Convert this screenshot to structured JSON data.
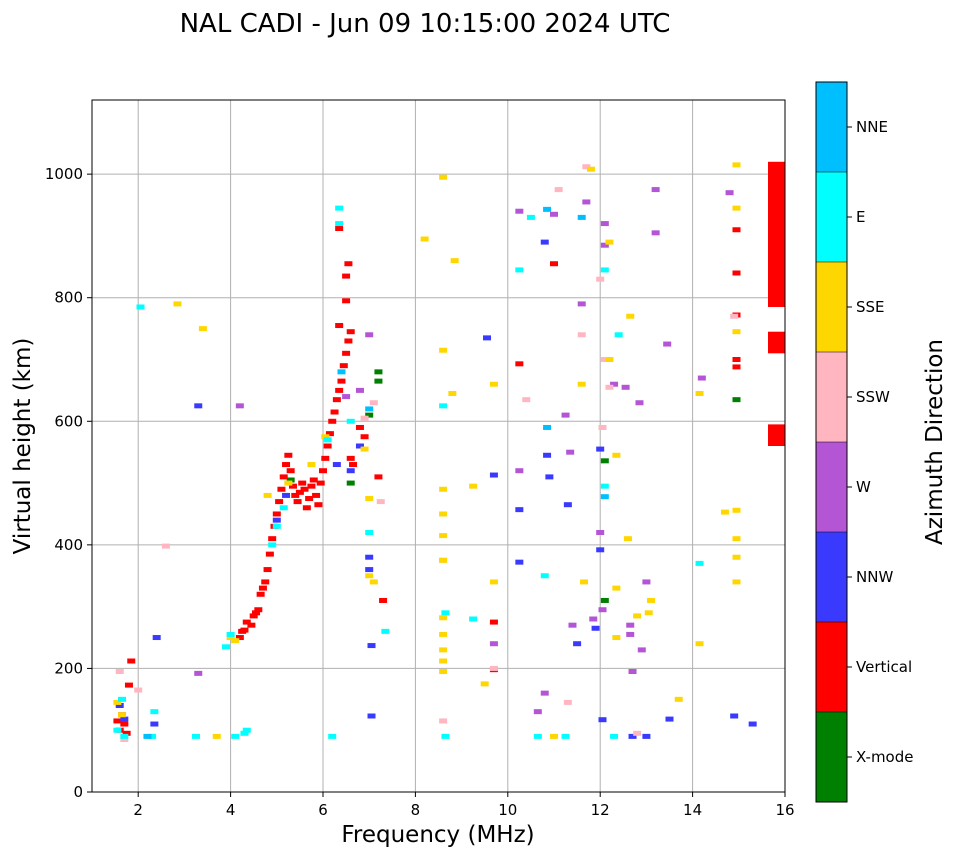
{
  "chart_data": {
    "type": "scatter",
    "title": "NAL CADI - Jun 09 10:15:00 2024 UTC",
    "xlabel": "Frequency (MHz)",
    "ylabel": "Virtual height (km)",
    "xlim": [
      1,
      16
    ],
    "ylim": [
      0,
      1120
    ],
    "xticks": [
      2,
      4,
      6,
      8,
      10,
      12,
      14,
      16
    ],
    "yticks": [
      0,
      200,
      400,
      600,
      800,
      1000
    ],
    "grid": true,
    "colorbar": {
      "label": "Azimuth Direction",
      "categories": [
        "X-mode",
        "Vertical",
        "NNW",
        "W",
        "SSW",
        "SSE",
        "E",
        "NNE"
      ],
      "colors": [
        "#008000",
        "#ff0000",
        "#3a3aff",
        "#b455d6",
        "#ffb6c1",
        "#ffd700",
        "#00ffff",
        "#00bfff"
      ]
    },
    "series": [
      {
        "name": "X-mode",
        "points": [
          [
            12.1,
            536
          ],
          [
            12.1,
            310
          ],
          [
            14.95,
            635
          ],
          [
            7.2,
            680
          ],
          [
            7.2,
            665
          ],
          [
            7.0,
            610
          ],
          [
            6.6,
            500
          ],
          [
            5.3,
            505
          ]
        ]
      },
      {
        "name": "Vertical",
        "points": [
          [
            1.55,
            115
          ],
          [
            1.6,
            100
          ],
          [
            1.65,
            125
          ],
          [
            1.7,
            110
          ],
          [
            1.75,
            95
          ],
          [
            1.8,
            173
          ],
          [
            1.85,
            212
          ],
          [
            4.2,
            250
          ],
          [
            4.25,
            260
          ],
          [
            4.3,
            262
          ],
          [
            4.35,
            275
          ],
          [
            4.45,
            270
          ],
          [
            4.5,
            285
          ],
          [
            4.55,
            290
          ],
          [
            4.6,
            295
          ],
          [
            4.65,
            320
          ],
          [
            4.7,
            330
          ],
          [
            4.75,
            340
          ],
          [
            4.8,
            360
          ],
          [
            4.85,
            385
          ],
          [
            4.9,
            410
          ],
          [
            4.95,
            430
          ],
          [
            5.0,
            450
          ],
          [
            5.05,
            470
          ],
          [
            5.1,
            490
          ],
          [
            5.15,
            510
          ],
          [
            5.2,
            530
          ],
          [
            5.25,
            545
          ],
          [
            5.3,
            520
          ],
          [
            5.35,
            495
          ],
          [
            5.4,
            480
          ],
          [
            5.45,
            470
          ],
          [
            5.5,
            485
          ],
          [
            5.55,
            500
          ],
          [
            5.6,
            490
          ],
          [
            5.65,
            460
          ],
          [
            5.7,
            475
          ],
          [
            5.75,
            495
          ],
          [
            5.8,
            505
          ],
          [
            5.85,
            480
          ],
          [
            5.9,
            465
          ],
          [
            5.95,
            500
          ],
          [
            6.0,
            520
          ],
          [
            6.05,
            540
          ],
          [
            6.1,
            560
          ],
          [
            6.15,
            580
          ],
          [
            6.2,
            600
          ],
          [
            6.25,
            615
          ],
          [
            6.3,
            635
          ],
          [
            6.35,
            650
          ],
          [
            6.4,
            665
          ],
          [
            6.45,
            690
          ],
          [
            6.5,
            710
          ],
          [
            6.55,
            730
          ],
          [
            6.6,
            745
          ],
          [
            6.35,
            755
          ],
          [
            6.5,
            795
          ],
          [
            6.5,
            835
          ],
          [
            6.55,
            855
          ],
          [
            6.35,
            912
          ],
          [
            6.6,
            540
          ],
          [
            6.65,
            530
          ],
          [
            6.8,
            590
          ],
          [
            6.9,
            575
          ],
          [
            7.2,
            510
          ],
          [
            7.3,
            310
          ],
          [
            11.0,
            855
          ],
          [
            10.25,
            693
          ],
          [
            9.7,
            275
          ],
          [
            9.7,
            198
          ],
          [
            14.95,
            910
          ],
          [
            14.95,
            840
          ],
          [
            14.95,
            772
          ],
          [
            14.95,
            700
          ],
          [
            14.95,
            688
          ]
        ]
      },
      {
        "name": "NNW",
        "points": [
          [
            1.6,
            140
          ],
          [
            1.7,
            118
          ],
          [
            2.35,
            110
          ],
          [
            2.4,
            250
          ],
          [
            3.3,
            625
          ],
          [
            5.0,
            440
          ],
          [
            5.2,
            480
          ],
          [
            6.3,
            530
          ],
          [
            6.6,
            520
          ],
          [
            6.8,
            560
          ],
          [
            7.0,
            380
          ],
          [
            7.0,
            360
          ],
          [
            7.05,
            237
          ],
          [
            7.05,
            123
          ],
          [
            9.55,
            735
          ],
          [
            9.7,
            513
          ],
          [
            10.25,
            457
          ],
          [
            10.25,
            372
          ],
          [
            10.8,
            890
          ],
          [
            10.85,
            545
          ],
          [
            10.9,
            510
          ],
          [
            11.3,
            465
          ],
          [
            11.5,
            240
          ],
          [
            11.9,
            265
          ],
          [
            12.0,
            555
          ],
          [
            12.0,
            392
          ],
          [
            12.05,
            117
          ],
          [
            13.5,
            118
          ],
          [
            14.9,
            123
          ],
          [
            15.3,
            110
          ],
          [
            12.7,
            90
          ],
          [
            13.0,
            90
          ]
        ]
      },
      {
        "name": "W",
        "points": [
          [
            3.3,
            192
          ],
          [
            4.2,
            625
          ],
          [
            6.5,
            640
          ],
          [
            6.8,
            650
          ],
          [
            7.0,
            740
          ],
          [
            9.7,
            240
          ],
          [
            10.25,
            940
          ],
          [
            10.25,
            520
          ],
          [
            10.65,
            130
          ],
          [
            10.8,
            160
          ],
          [
            11.0,
            935
          ],
          [
            11.25,
            610
          ],
          [
            11.35,
            550
          ],
          [
            11.4,
            270
          ],
          [
            11.6,
            790
          ],
          [
            11.7,
            955
          ],
          [
            11.85,
            280
          ],
          [
            12.0,
            420
          ],
          [
            12.05,
            295
          ],
          [
            12.1,
            920
          ],
          [
            12.1,
            885
          ],
          [
            12.3,
            660
          ],
          [
            12.55,
            655
          ],
          [
            12.65,
            270
          ],
          [
            12.65,
            255
          ],
          [
            12.7,
            195
          ],
          [
            12.85,
            630
          ],
          [
            12.9,
            230
          ],
          [
            13.0,
            340
          ],
          [
            13.2,
            975
          ],
          [
            13.2,
            905
          ],
          [
            13.45,
            725
          ],
          [
            14.2,
            670
          ],
          [
            14.8,
            970
          ]
        ]
      },
      {
        "name": "SSW",
        "points": [
          [
            1.6,
            195
          ],
          [
            1.7,
            85
          ],
          [
            2.0,
            165
          ],
          [
            2.6,
            398
          ],
          [
            6.9,
            605
          ],
          [
            7.1,
            630
          ],
          [
            7.25,
            470
          ],
          [
            8.6,
            375
          ],
          [
            8.6,
            115
          ],
          [
            9.7,
            200
          ],
          [
            10.4,
            635
          ],
          [
            11.1,
            975
          ],
          [
            11.3,
            145
          ],
          [
            11.6,
            740
          ],
          [
            11.7,
            1012
          ],
          [
            12.0,
            830
          ],
          [
            12.05,
            590
          ],
          [
            12.1,
            700
          ],
          [
            12.2,
            655
          ],
          [
            12.8,
            95
          ],
          [
            14.9,
            770
          ]
        ]
      },
      {
        "name": "SSE",
        "points": [
          [
            1.55,
            145
          ],
          [
            1.65,
            125
          ],
          [
            2.85,
            790
          ],
          [
            3.4,
            750
          ],
          [
            3.7,
            90
          ],
          [
            4.0,
            250
          ],
          [
            4.1,
            245
          ],
          [
            4.8,
            480
          ],
          [
            5.25,
            500
          ],
          [
            5.75,
            530
          ],
          [
            6.05,
            575
          ],
          [
            6.9,
            555
          ],
          [
            7.0,
            475
          ],
          [
            7.0,
            350
          ],
          [
            7.1,
            340
          ],
          [
            8.2,
            895
          ],
          [
            8.6,
            995
          ],
          [
            8.6,
            715
          ],
          [
            8.6,
            490
          ],
          [
            8.6,
            450
          ],
          [
            8.6,
            415
          ],
          [
            8.6,
            375
          ],
          [
            8.6,
            282
          ],
          [
            8.6,
            255
          ],
          [
            8.6,
            230
          ],
          [
            8.6,
            212
          ],
          [
            8.6,
            195
          ],
          [
            8.8,
            645
          ],
          [
            8.85,
            860
          ],
          [
            9.25,
            495
          ],
          [
            9.5,
            175
          ],
          [
            9.7,
            660
          ],
          [
            9.7,
            340
          ],
          [
            11.0,
            90
          ],
          [
            11.6,
            660
          ],
          [
            11.65,
            340
          ],
          [
            11.8,
            1008
          ],
          [
            12.2,
            890
          ],
          [
            12.2,
            700
          ],
          [
            12.35,
            545
          ],
          [
            12.35,
            330
          ],
          [
            12.35,
            250
          ],
          [
            12.6,
            410
          ],
          [
            12.65,
            770
          ],
          [
            12.8,
            285
          ],
          [
            13.05,
            290
          ],
          [
            13.1,
            310
          ],
          [
            13.7,
            150
          ],
          [
            14.15,
            240
          ],
          [
            14.15,
            645
          ],
          [
            14.7,
            453
          ],
          [
            14.95,
            1015
          ],
          [
            14.95,
            945
          ],
          [
            14.95,
            745
          ],
          [
            14.95,
            456
          ],
          [
            14.95,
            410
          ],
          [
            14.95,
            380
          ],
          [
            14.95,
            340
          ]
        ]
      },
      {
        "name": "E",
        "points": [
          [
            1.55,
            100
          ],
          [
            1.65,
            150
          ],
          [
            1.7,
            90
          ],
          [
            2.05,
            785
          ],
          [
            2.3,
            90
          ],
          [
            2.35,
            130
          ],
          [
            3.25,
            90
          ],
          [
            3.9,
            235
          ],
          [
            4.0,
            255
          ],
          [
            4.1,
            90
          ],
          [
            4.3,
            95
          ],
          [
            4.35,
            100
          ],
          [
            4.9,
            400
          ],
          [
            5.0,
            430
          ],
          [
            5.15,
            460
          ],
          [
            6.1,
            570
          ],
          [
            6.2,
            90
          ],
          [
            6.35,
            945
          ],
          [
            6.35,
            920
          ],
          [
            6.6,
            600
          ],
          [
            7.0,
            420
          ],
          [
            7.35,
            260
          ],
          [
            8.6,
            625
          ],
          [
            8.65,
            290
          ],
          [
            8.65,
            90
          ],
          [
            9.25,
            280
          ],
          [
            10.25,
            845
          ],
          [
            10.5,
            930
          ],
          [
            10.65,
            90
          ],
          [
            10.8,
            350
          ],
          [
            11.25,
            90
          ],
          [
            12.1,
            495
          ],
          [
            12.1,
            845
          ],
          [
            12.4,
            740
          ],
          [
            12.3,
            90
          ],
          [
            14.15,
            370
          ]
        ]
      },
      {
        "name": "NNE",
        "points": [
          [
            2.2,
            90
          ],
          [
            6.4,
            680
          ],
          [
            7.0,
            620
          ],
          [
            10.85,
            943
          ],
          [
            10.85,
            590
          ],
          [
            11.6,
            930
          ],
          [
            12.1,
            478
          ]
        ]
      }
    ],
    "vertical_band_segments": [
      [
        560,
        595
      ],
      [
        710,
        745
      ],
      [
        785,
        1020
      ]
    ]
  }
}
